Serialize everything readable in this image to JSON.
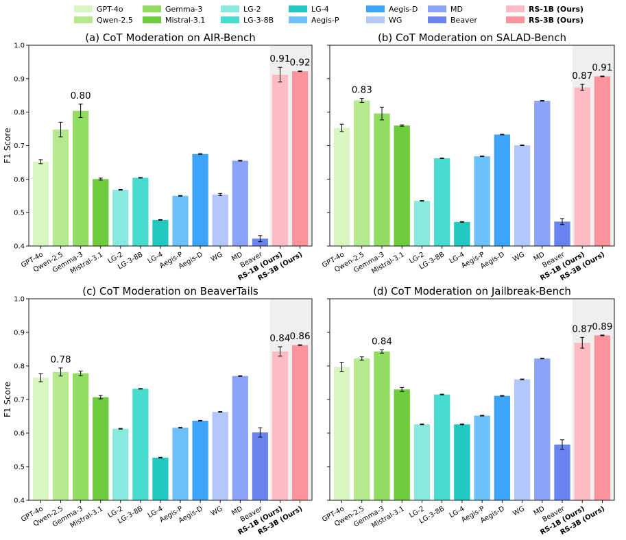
{
  "legend": [
    {
      "model": "GPT-4o",
      "color": "#d9f5c0",
      "bold": false
    },
    {
      "model": "Qwen-2.5",
      "color": "#b6e88e",
      "bold": false
    },
    {
      "model": "Gemma-3",
      "color": "#93dc63",
      "bold": false
    },
    {
      "model": "Mistral-3.1",
      "color": "#6ecb3c",
      "bold": false
    },
    {
      "model": "LG-2",
      "color": "#8ae9df",
      "bold": false
    },
    {
      "model": "LG-3-8B",
      "color": "#47dccf",
      "bold": false
    },
    {
      "model": "LG-4",
      "color": "#23c8c0",
      "bold": false
    },
    {
      "model": "Aegis-P",
      "color": "#6cc1fb",
      "bold": false
    },
    {
      "model": "Aegis-D",
      "color": "#3ea4f9",
      "bold": false
    },
    {
      "model": "WG",
      "color": "#b3c7fb",
      "bold": false
    },
    {
      "model": "MD",
      "color": "#8ca4f8",
      "bold": false
    },
    {
      "model": "Beaver",
      "color": "#6a84ef",
      "bold": false
    },
    {
      "model": "RS-1B (Ours)",
      "color": "#fdbcc4",
      "bold": true
    },
    {
      "model": "RS-3B (Ours)",
      "color": "#fd939d",
      "bold": true
    }
  ],
  "chart_data": [
    {
      "type": "bar",
      "title": "(a) CoT Moderation on AIR-Bench",
      "ylabel": "F1 Score",
      "ylim": [
        0.4,
        1.0
      ],
      "yticks": [
        "0.4",
        "0.5",
        "0.6",
        "0.7",
        "0.8",
        "0.9",
        "1.0"
      ],
      "categories": [
        "GPT-4o",
        "Qwen-2.5",
        "Gemma-3",
        "Mistral-3.1",
        "LG-2",
        "LG-3-8B",
        "LG-4",
        "Aegis-P",
        "Aegis-D",
        "WG",
        "MD",
        "Beaver",
        "RS-1B (Ours)",
        "RS-3B (Ours)"
      ],
      "values": [
        0.652,
        0.748,
        0.804,
        0.6,
        0.568,
        0.604,
        0.478,
        0.55,
        0.675,
        0.554,
        0.655,
        0.422,
        0.912,
        0.922
      ],
      "errors": [
        0.006,
        0.022,
        0.02,
        0.003,
        0.001,
        0.001,
        0.001,
        0.001,
        0.001,
        0.003,
        0.001,
        0.009,
        0.022,
        0.001
      ],
      "value_labels": [
        {
          "index": 2,
          "text": "0.80"
        },
        {
          "index": 12,
          "text": "0.91"
        },
        {
          "index": 13,
          "text": "0.92"
        }
      ]
    },
    {
      "type": "bar",
      "title": "(b) CoT Moderation on SALAD-Bench",
      "ylabel": "",
      "ylim": [
        0.4,
        1.0
      ],
      "yticks": [],
      "categories": [
        "GPT-4o",
        "Qwen-2.5",
        "Gemma-3",
        "Mistral-3.1",
        "LG-2",
        "LG-3-8B",
        "LG-4",
        "Aegis-P",
        "Aegis-D",
        "WG",
        "MD",
        "Beaver",
        "RS-1B (Ours)",
        "RS-3B (Ours)"
      ],
      "values": [
        0.753,
        0.835,
        0.796,
        0.76,
        0.535,
        0.662,
        0.472,
        0.668,
        0.733,
        0.701,
        0.834,
        0.473,
        0.874,
        0.907
      ],
      "errors": [
        0.011,
        0.006,
        0.019,
        0.002,
        0.001,
        0.001,
        0.001,
        0.001,
        0.001,
        0.001,
        0.001,
        0.009,
        0.009,
        0.001
      ],
      "value_labels": [
        {
          "index": 1,
          "text": "0.83"
        },
        {
          "index": 12,
          "text": "0.87"
        },
        {
          "index": 13,
          "text": "0.91"
        }
      ]
    },
    {
      "type": "bar",
      "title": "(c) CoT Moderation on BeaverTails",
      "ylabel": "F1 Score",
      "ylim": [
        0.4,
        1.0
      ],
      "yticks": [
        "0.4",
        "0.5",
        "0.6",
        "0.7",
        "0.8",
        "0.9",
        "1.0"
      ],
      "categories": [
        "GPT-4o",
        "Qwen-2.5",
        "Gemma-3",
        "Mistral-3.1",
        "LG-2",
        "LG-3-8B",
        "LG-4",
        "Aegis-P",
        "Aegis-D",
        "WG",
        "MD",
        "Beaver",
        "RS-1B (Ours)",
        "RS-3B (Ours)"
      ],
      "values": [
        0.765,
        0.782,
        0.778,
        0.707,
        0.613,
        0.732,
        0.527,
        0.616,
        0.637,
        0.663,
        0.77,
        0.602,
        0.843,
        0.862
      ],
      "errors": [
        0.012,
        0.012,
        0.007,
        0.005,
        0.001,
        0.001,
        0.001,
        0.001,
        0.001,
        0.001,
        0.001,
        0.014,
        0.014,
        0.001
      ],
      "value_labels": [
        {
          "index": 1,
          "text": "0.78"
        },
        {
          "index": 12,
          "text": "0.84"
        },
        {
          "index": 13,
          "text": "0.86"
        }
      ]
    },
    {
      "type": "bar",
      "title": "(d) CoT Moderation on Jailbreak-Bench",
      "ylabel": "",
      "ylim": [
        0.4,
        1.0
      ],
      "yticks": [],
      "categories": [
        "GPT-4o",
        "Qwen-2.5",
        "Gemma-3",
        "Mistral-3.1",
        "LG-2",
        "LG-3-8B",
        "LG-4",
        "Aegis-P",
        "Aegis-D",
        "WG",
        "MD",
        "Beaver",
        "RS-1B (Ours)",
        "RS-3B (Ours)"
      ],
      "values": [
        0.797,
        0.822,
        0.843,
        0.73,
        0.626,
        0.715,
        0.626,
        0.652,
        0.711,
        0.76,
        0.822,
        0.566,
        0.869,
        0.891
      ],
      "errors": [
        0.014,
        0.005,
        0.005,
        0.006,
        0.001,
        0.001,
        0.001,
        0.001,
        0.001,
        0.001,
        0.001,
        0.014,
        0.016,
        0.001
      ],
      "value_labels": [
        {
          "index": 2,
          "text": "0.84"
        },
        {
          "index": 12,
          "text": "0.87"
        },
        {
          "index": 13,
          "text": "0.89"
        }
      ]
    }
  ]
}
